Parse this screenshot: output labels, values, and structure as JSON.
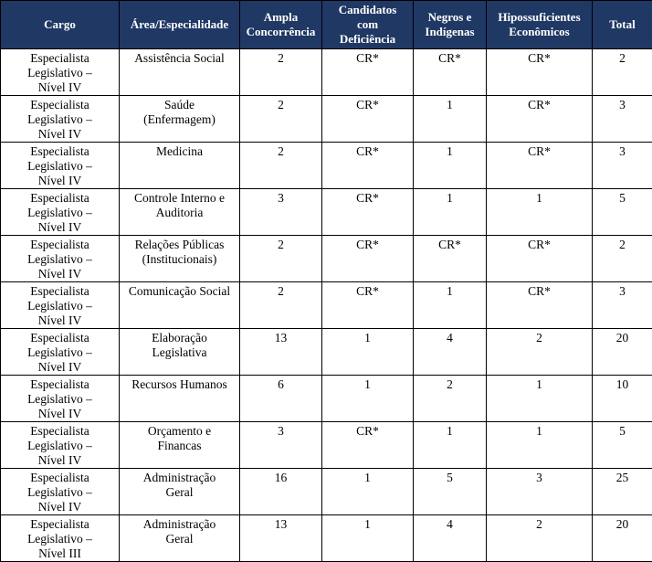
{
  "colors": {
    "header_bg": "#1f3864",
    "header_text": "#ffffff",
    "border": "#000000",
    "body_text": "#000000"
  },
  "table": {
    "columns": [
      {
        "label": "Cargo"
      },
      {
        "label": "Área/Especialidade"
      },
      {
        "label": "Ampla\nConcorrência"
      },
      {
        "label": "Candidatos\ncom\nDeficiência"
      },
      {
        "label": "Negros e\nIndígenas"
      },
      {
        "label": "Hipossuficientes\nEconômicos"
      },
      {
        "label": "Total"
      }
    ],
    "rows": [
      [
        "Especialista\nLegislativo –\nNível IV",
        "Assistência Social",
        "2",
        "CR*",
        "CR*",
        "CR*",
        "2"
      ],
      [
        "Especialista\nLegislativo –\nNível IV",
        "Saúde\n(Enfermagem)",
        "2",
        "CR*",
        "1",
        "CR*",
        "3"
      ],
      [
        "Especialista\nLegislativo –\nNível IV",
        "Medicina",
        "2",
        "CR*",
        "1",
        "CR*",
        "3"
      ],
      [
        "Especialista\nLegislativo –\nNível IV",
        "Controle Interno e\nAuditoria",
        "3",
        "CR*",
        "1",
        "1",
        "5"
      ],
      [
        "Especialista\nLegislativo –\nNível IV",
        "Relações Públicas\n(Institucionais)",
        "2",
        "CR*",
        "CR*",
        "CR*",
        "2"
      ],
      [
        "Especialista\nLegislativo –\nNível IV",
        "Comunicação Social",
        "2",
        "CR*",
        "1",
        "CR*",
        "3"
      ],
      [
        "Especialista\nLegislativo –\nNível IV",
        "Elaboração\nLegislativa",
        "13",
        "1",
        "4",
        "2",
        "20"
      ],
      [
        "Especialista\nLegislativo –\nNível IV",
        "Recursos Humanos",
        "6",
        "1",
        "2",
        "1",
        "10"
      ],
      [
        "Especialista\nLegislativo –\nNível IV",
        "Orçamento e\nFinancas",
        "3",
        "CR*",
        "1",
        "1",
        "5"
      ],
      [
        "Especialista\nLegislativo –\nNível IV",
        "Administração\nGeral",
        "16",
        "1",
        "5",
        "3",
        "25"
      ],
      [
        "Especialista\nLegislativo –\nNível III",
        "Administração\nGeral",
        "13",
        "1",
        "4",
        "2",
        "20"
      ]
    ]
  }
}
